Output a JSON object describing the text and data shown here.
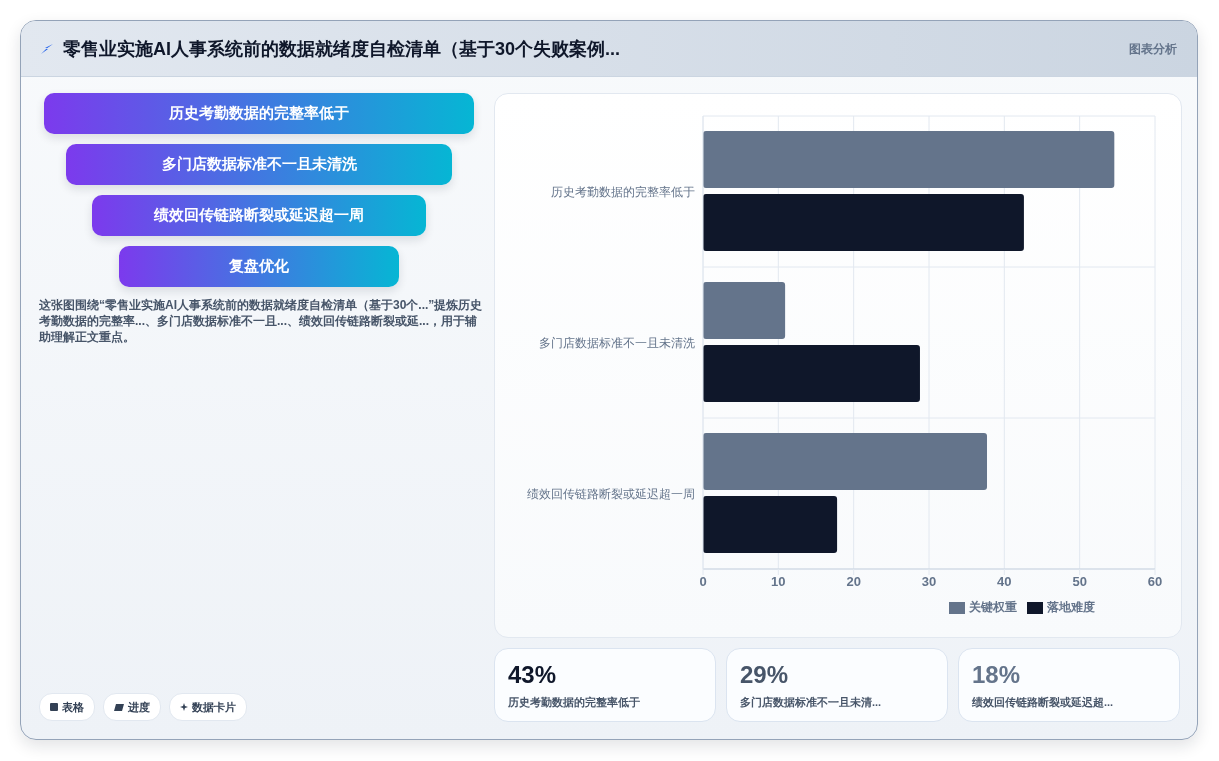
{
  "chart_data": {
    "type": "bar",
    "orientation": "horizontal",
    "title": "零售业实施AI人事系统前的数据就绪度自检清单（基于30个失败案例...",
    "categories": [
      "历史考勤数据的完整率低于",
      "多门店数据标准不一且未清洗",
      "绩效回传链路断裂或延迟超一周"
    ],
    "series": [
      {
        "name": "关键权重",
        "color": "#64748b",
        "values": [
          54.6,
          10.9,
          37.7
        ]
      },
      {
        "name": "落地难度",
        "color": "#0f172a",
        "values": [
          42.6,
          28.8,
          17.8
        ]
      }
    ],
    "xlim": [
      0,
      60
    ],
    "xticks": [
      0,
      10,
      20,
      30,
      40,
      50,
      60
    ],
    "grid": true,
    "legend": "bottom",
    "annotations": [
      "图表分析",
      "历史考勤数据的完整率低于",
      "多门店数据标准不一且未清洗",
      "绩效回传链路断裂或延迟超一周",
      "复盘优化",
      "这张图围绕“零售业实施AI人事系统前的数据就绪度自检清单（基于30个...”提炼历史考勤数据的完整率...、多门店数据标准不一且...、绩效回传链路断裂或延...，用于辅助理解正文重点。",
      "表格",
      "进度",
      "数据卡片",
      "43%",
      "历史考勤数据的完整率低于",
      "29%",
      "多门店数据标准不一且未清...",
      "18%",
      "绩效回传链路断裂或延迟超..."
    ]
  }
}
